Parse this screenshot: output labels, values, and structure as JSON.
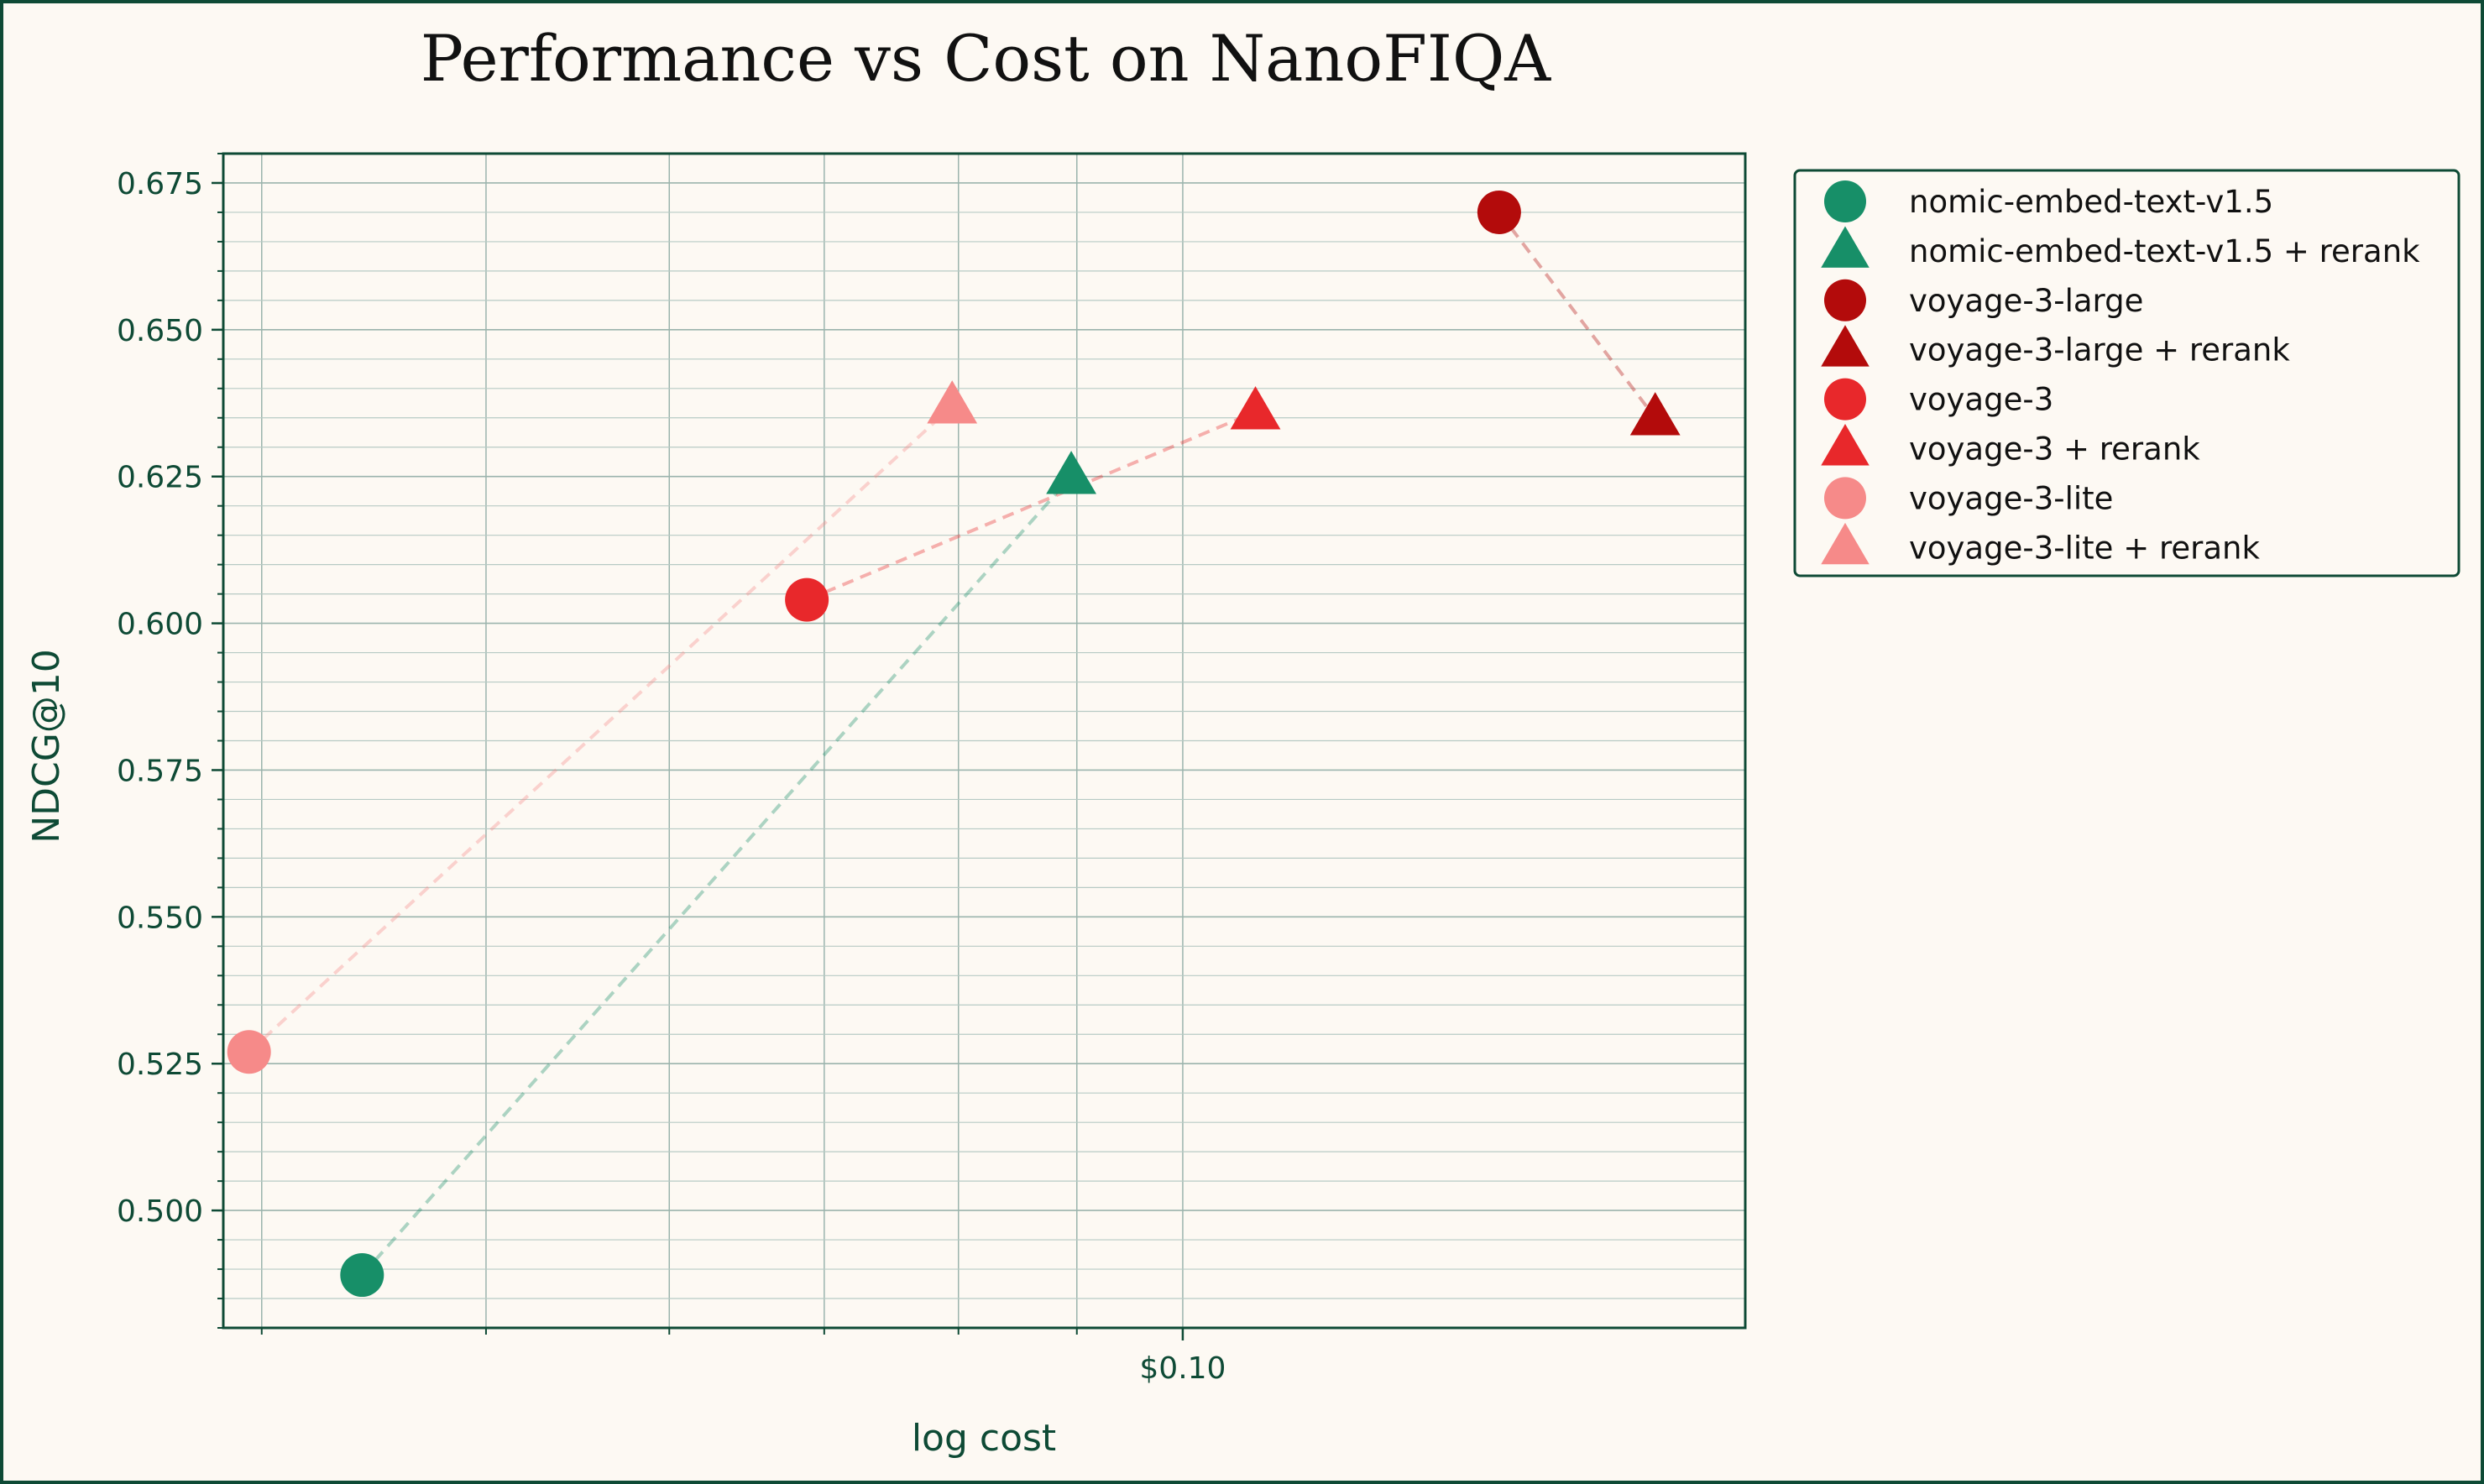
{
  "chart_data": {
    "type": "scatter",
    "title": "Performance vs Cost on NanoFIQA",
    "xlabel": "log cost",
    "ylabel": "NDCG@10",
    "x_scale": "log",
    "xlim": [
      0.0385,
      0.175
    ],
    "ylim": [
      0.48,
      0.68
    ],
    "x_ticks": [
      {
        "value": 0.1,
        "label": "$0.10"
      }
    ],
    "y_ticks": [
      {
        "value": 0.5,
        "label": "0.500"
      },
      {
        "value": 0.525,
        "label": "0.525"
      },
      {
        "value": 0.55,
        "label": "0.550"
      },
      {
        "value": 0.575,
        "label": "0.575"
      },
      {
        "value": 0.6,
        "label": "0.600"
      },
      {
        "value": 0.625,
        "label": "0.625"
      },
      {
        "value": 0.65,
        "label": "0.650"
      },
      {
        "value": 0.675,
        "label": "0.675"
      }
    ],
    "grid": true,
    "legend_position": "outside-right-top",
    "series": [
      {
        "name": "nomic-embed-text-v1.5",
        "marker": "circle",
        "color": "#178f68",
        "x": 0.0442,
        "y": 0.489
      },
      {
        "name": "nomic-embed-text-v1.5 + rerank",
        "marker": "triangle",
        "color": "#178f68",
        "x": 0.0895,
        "y": 0.625
      },
      {
        "name": "voyage-3-large",
        "marker": "circle",
        "color": "#b30b0b",
        "x": 0.137,
        "y": 0.67
      },
      {
        "name": "voyage-3-large + rerank",
        "marker": "triangle",
        "color": "#b30b0b",
        "x": 0.16,
        "y": 0.635
      },
      {
        "name": "voyage-3",
        "marker": "circle",
        "color": "#e8282b",
        "x": 0.0688,
        "y": 0.604
      },
      {
        "name": "voyage-3 + rerank",
        "marker": "triangle",
        "color": "#e8282b",
        "x": 0.1075,
        "y": 0.636
      },
      {
        "name": "voyage-3-lite",
        "marker": "circle",
        "color": "#f68a89",
        "x": 0.0395,
        "y": 0.527
      },
      {
        "name": "voyage-3-lite + rerank",
        "marker": "triangle",
        "color": "#f68a89",
        "x": 0.0795,
        "y": 0.637
      }
    ],
    "connectors": [
      {
        "from": 0,
        "to": 1,
        "color": "#178f68"
      },
      {
        "from": 2,
        "to": 3,
        "color": "#b30b0b"
      },
      {
        "from": 4,
        "to": 5,
        "color": "#e8282b"
      },
      {
        "from": 6,
        "to": 7,
        "color": "#f68a89"
      }
    ]
  }
}
